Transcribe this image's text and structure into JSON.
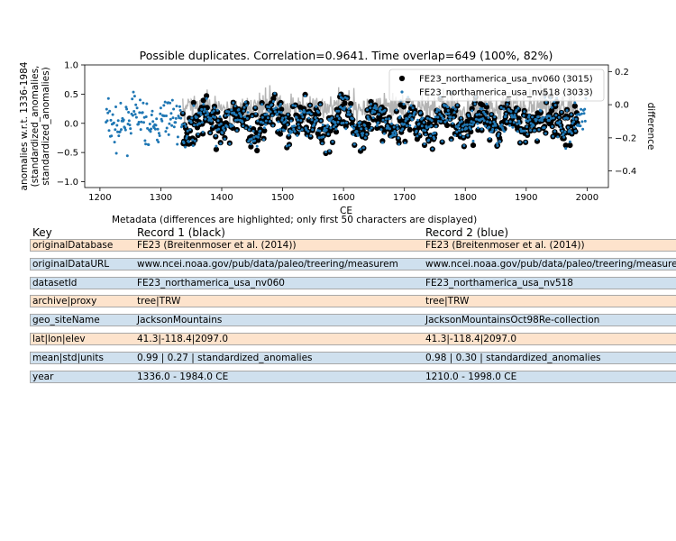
{
  "chart_data": {
    "type": "scatter",
    "title": "Possible duplicates. Correlation=0.9641. Time overlap=649 (100%, 82%)",
    "xlabel": "CE",
    "ylabel_lines": [
      "anomalies w.r.t. 1336-1984",
      "(standardized_anomalies,",
      "standardized_anomalies)"
    ],
    "y2label": "difference",
    "xlim": [
      1175,
      2035
    ],
    "ylim": [
      -1.1,
      1.0
    ],
    "y2lim": [
      -0.5,
      0.24
    ],
    "xticks": [
      1200,
      1300,
      1400,
      1500,
      1600,
      1700,
      1800,
      1900,
      2000
    ],
    "yticks": [
      -1.0,
      -0.5,
      0.0,
      0.5,
      1.0
    ],
    "y2ticks": [
      -0.4,
      -0.2,
      0.0,
      0.2
    ],
    "xtick_labels": [
      "1200",
      "1300",
      "1400",
      "1500",
      "1600",
      "1700",
      "1800",
      "1900",
      "2000"
    ],
    "ytick_labels": [
      "−1.0",
      "−0.5",
      "0.0",
      "0.5",
      "1.0"
    ],
    "y2tick_labels": [
      "−0.4",
      "−0.2",
      "0.0",
      "0.2"
    ],
    "grid": false,
    "legend_position": "top-right",
    "series": [
      {
        "name": "FE23_northamerica_usa_nv060 (3015)",
        "color": "#000000",
        "marker": "circle",
        "axis": "left",
        "x_range": [
          1336,
          1984
        ]
      },
      {
        "name": "FE23_northamerica_usa_nv518 (3033)",
        "color": "#1f77b4",
        "marker": "dot",
        "axis": "left",
        "x_range": [
          1210,
          1998
        ]
      },
      {
        "name": "difference",
        "color": "#b4b4b4",
        "marker": "line",
        "axis": "right",
        "x_range": [
          1336,
          1984
        ]
      }
    ]
  },
  "metadata": {
    "title": "Metadata (differences are highlighted; only first 50 characters are displayed)",
    "headers": [
      "Key",
      "Record 1 (black)",
      "Record 2 (blue)"
    ],
    "highlight_color": "#fde3cc",
    "same_color": "#cfe0ee",
    "rows": [
      {
        "key": "originalDatabase",
        "r1": "FE23 (Breitenmoser et al. (2014))",
        "r2": "FE23 (Breitenmoser et al. (2014))",
        "highlight": true
      },
      {
        "key": "originalDataURL",
        "r1": "www.ncei.noaa.gov/pub/data/paleo/treering/measurem",
        "r2": "www.ncei.noaa.gov/pub/data/paleo/treering/measure",
        "highlight": false
      },
      {
        "key": "datasetId",
        "r1": "FE23_northamerica_usa_nv060",
        "r2": "FE23_northamerica_usa_nv518",
        "highlight": false
      },
      {
        "key": "archive|proxy",
        "r1": "tree|TRW",
        "r2": "tree|TRW",
        "highlight": true
      },
      {
        "key": "geo_siteName",
        "r1": "JacksonMountains",
        "r2": "JacksonMountainsOct98Re-collection",
        "highlight": false
      },
      {
        "key": "lat|lon|elev",
        "r1": "41.3|-118.4|2097.0",
        "r2": "41.3|-118.4|2097.0",
        "highlight": true
      },
      {
        "key": "mean|std|units",
        "r1": "0.99 | 0.27 | standardized_anomalies",
        "r2": "0.98 | 0.30 | standardized_anomalies",
        "highlight": false
      },
      {
        "key": "year",
        "r1": "1336.0 - 1984.0 CE",
        "r2": "1210.0 - 1998.0 CE",
        "highlight": false
      }
    ]
  }
}
